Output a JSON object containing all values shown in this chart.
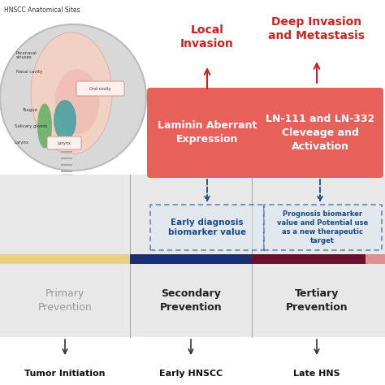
{
  "bg_color": "#ffffff",
  "gray_upper_color": "#e8e8e8",
  "gray_lower_color": "#e0e0e0",
  "red_box_color": "#e8605a",
  "red_text_color": "#cc2222",
  "blue_dashed_color": "#1a4a8a",
  "bar_yellow": "#e8d080",
  "bar_blue": "#1a3070",
  "bar_maroon": "#6a1030",
  "bar_pink": "#e09090",
  "primary_text": "Primary\nPrevention",
  "secondary_text": "Secondary\nPrevention",
  "tertiary_text": "Tertiary\nPrevention",
  "box1_text": "Laminin Aberrant\nExpression",
  "box2_text": "LN-111 and LN-332\nCleveage and\nActivation",
  "label1_text": "Local\nInvasion",
  "label2_text": "Deep Invasion\nand Metastasis",
  "dashed1_text": "Early diagnosis\nbiomarker value",
  "dashed2_text": "Prognosis biomarker\nvalue and Potential use\nas a new therapeutic\ntarget",
  "bottom1": "Tumor Initiation",
  "bottom2": "Early HNSCC",
  "bottom3": "Late HNS",
  "hnscc_title": "HNSCC Anatomical Sites",
  "circle_color": "#d8d8d8",
  "arrow_color": "#333333",
  "divider_color": "#aaaaaa"
}
